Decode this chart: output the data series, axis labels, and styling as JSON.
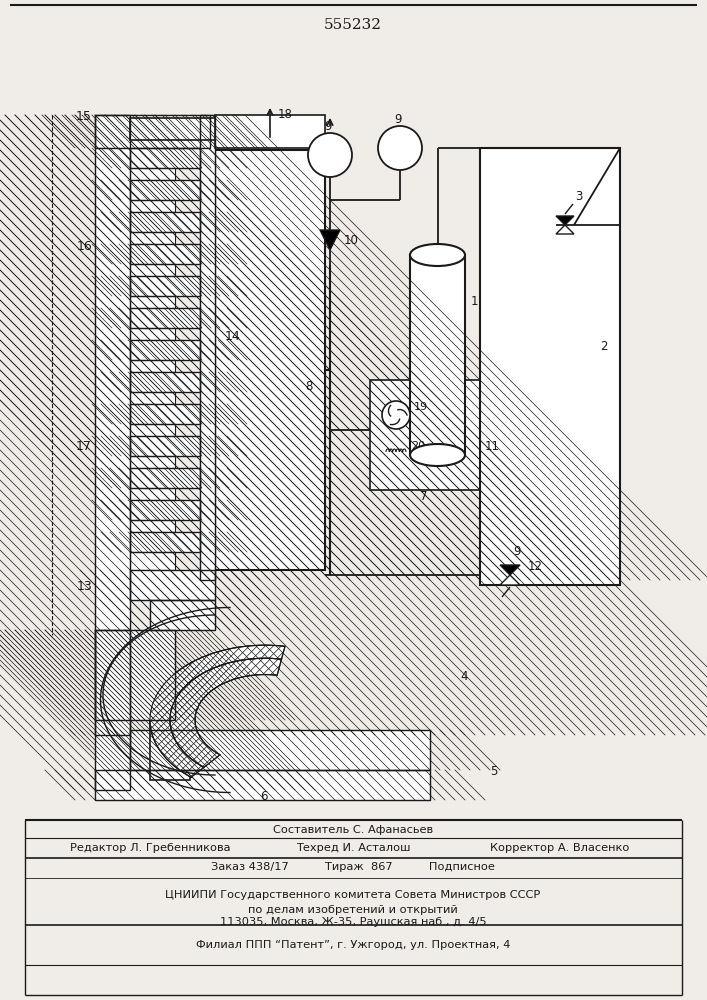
{
  "title": "555232",
  "bg_color": "#f0ede8",
  "line_color": "#1a1a1a",
  "footer": {
    "line1": "Составитель С. Афанасьев",
    "line2_left": "Редактор Л. Гребенникова",
    "line2_mid": "Техред И. Асталош",
    "line2_right": "Корректор А. Власенко",
    "line3": "Заказ 438/17          Тираж  867          Подписное",
    "line4": "ЦНИИПИ Государственного комитета Совета Министров СССР",
    "line5": "по делам изобретений и открытий",
    "line6": "113035, Москва, Ж-35, Раушская наб., д. 4/5",
    "line7": "Филиал ППП “Патент”, г. Ужгород, ул. Проектная, 4"
  }
}
